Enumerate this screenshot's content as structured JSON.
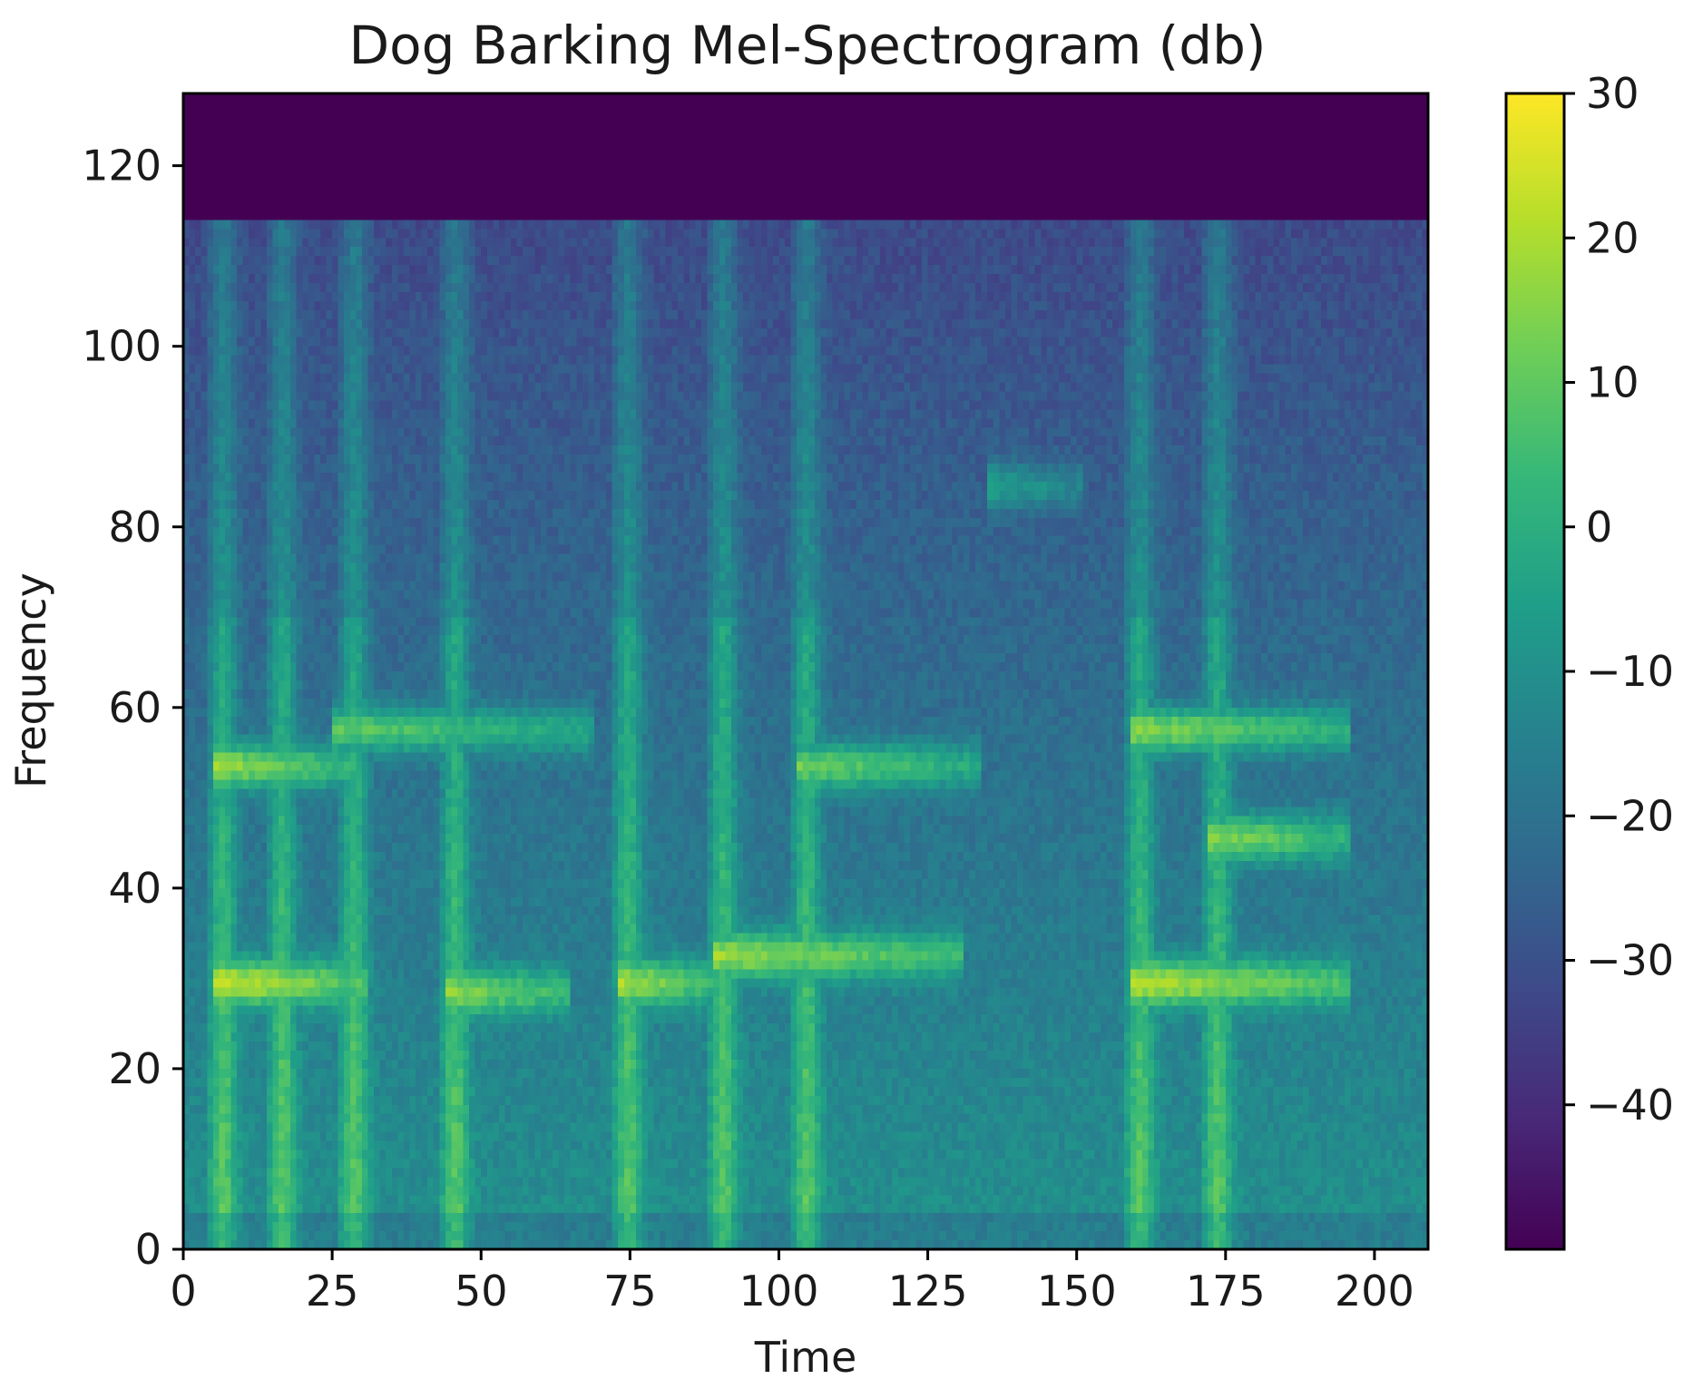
{
  "chart_data": {
    "type": "heatmap",
    "title": "Dog Barking Mel-Spectrogram (db)",
    "xlabel": "Time",
    "ylabel": "Frequency",
    "xlim": [
      0,
      209
    ],
    "ylim": [
      0,
      128
    ],
    "x_ticks": [
      0,
      25,
      50,
      75,
      100,
      125,
      150,
      175,
      200
    ],
    "x_tick_labels": [
      "0",
      "25",
      "50",
      "75",
      "100",
      "125",
      "150",
      "175",
      "200"
    ],
    "y_ticks": [
      0,
      20,
      40,
      60,
      80,
      100,
      120
    ],
    "y_tick_labels": [
      "0",
      "20",
      "40",
      "60",
      "80",
      "100",
      "120"
    ],
    "colorbar": {
      "colormap": "viridis",
      "vmin": -50,
      "vmax": 30,
      "ticks": [
        30,
        20,
        10,
        0,
        -10,
        -20,
        -30,
        -40
      ],
      "tick_labels": [
        "30",
        "20",
        "10",
        "0",
        "−10",
        "−20",
        "−30",
        "−40"
      ]
    },
    "floor_db": -50,
    "nyquist_cutoff_bin": 114,
    "bark_onsets_time": [
      5,
      15,
      27,
      44,
      73,
      89,
      103,
      159,
      172
    ],
    "sustained_bands": [
      {
        "t_start": 5,
        "t_end": 30,
        "freq_bin": 29,
        "level_db": 24
      },
      {
        "t_start": 5,
        "t_end": 28,
        "freq_bin": 53,
        "level_db": 18
      },
      {
        "t_start": 25,
        "t_end": 68,
        "freq_bin": 57,
        "level_db": 10
      },
      {
        "t_start": 44,
        "t_end": 64,
        "freq_bin": 28,
        "level_db": 16
      },
      {
        "t_start": 73,
        "t_end": 88,
        "freq_bin": 29,
        "level_db": 20
      },
      {
        "t_start": 89,
        "t_end": 130,
        "freq_bin": 32,
        "level_db": 18
      },
      {
        "t_start": 103,
        "t_end": 133,
        "freq_bin": 53,
        "level_db": 12
      },
      {
        "t_start": 135,
        "t_end": 150,
        "freq_bin": 84,
        "level_db": -5
      },
      {
        "t_start": 159,
        "t_end": 195,
        "freq_bin": 29,
        "level_db": 22
      },
      {
        "t_start": 159,
        "t_end": 195,
        "freq_bin": 57,
        "level_db": 16
      },
      {
        "t_start": 172,
        "t_end": 195,
        "freq_bin": 45,
        "level_db": 16
      }
    ],
    "colors": {
      "axis": "#000000",
      "background": "#ffffff"
    }
  }
}
